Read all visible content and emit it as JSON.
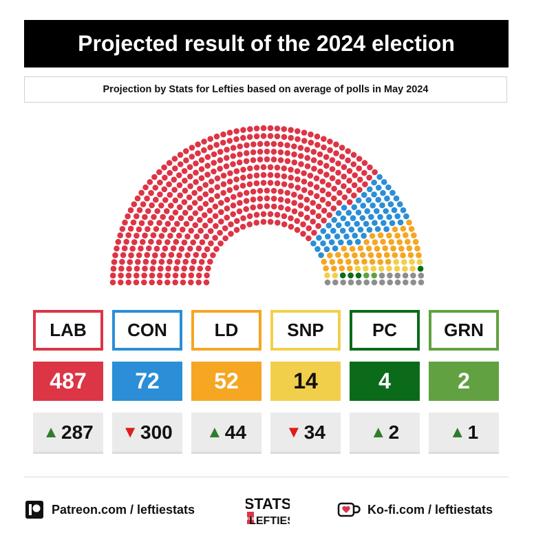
{
  "title": "Projected result of the 2024 election",
  "subtitle": "Projection by Stats for Lefties based on average of polls in May 2024",
  "chart_data": {
    "type": "parliament",
    "title": "Projected result of the 2024 election",
    "subtitle": "Projection by Stats for Lefties based on average of polls in May 2024",
    "total_seats": 650,
    "parties": [
      {
        "label": "LAB",
        "seats": 487,
        "change": "287",
        "direction": "up",
        "color": "#dc3546"
      },
      {
        "label": "CON",
        "seats": 72,
        "change": "300",
        "direction": "down",
        "color": "#2b8ed6"
      },
      {
        "label": "LD",
        "seats": 52,
        "change": "44",
        "direction": "up",
        "color": "#f5a623"
      },
      {
        "label": "SNP",
        "seats": 14,
        "change": "34",
        "direction": "down",
        "color": "#f2cf4a"
      },
      {
        "label": "PC",
        "seats": 4,
        "change": "2",
        "direction": "up",
        "color": "#0b6b1a"
      },
      {
        "label": "GRN",
        "seats": 2,
        "change": "1",
        "direction": "up",
        "color": "#62a141"
      }
    ],
    "other_seats": 19,
    "other_color": "#8e8e8e"
  },
  "colors": {
    "up_arrow": "#2f7d2b",
    "down_arrow": "#e01b1b",
    "seat_text_light": "#ffffff",
    "seat_text_dark": "#111111"
  },
  "footer": {
    "patreon": "Patreon.com / leftiestats",
    "kofi": "Ko-fi.com / leftiestats",
    "logo_text_top": "STATS",
    "logo_text_bottom": "LEFTIES",
    "logo_text_for": "FOR"
  }
}
